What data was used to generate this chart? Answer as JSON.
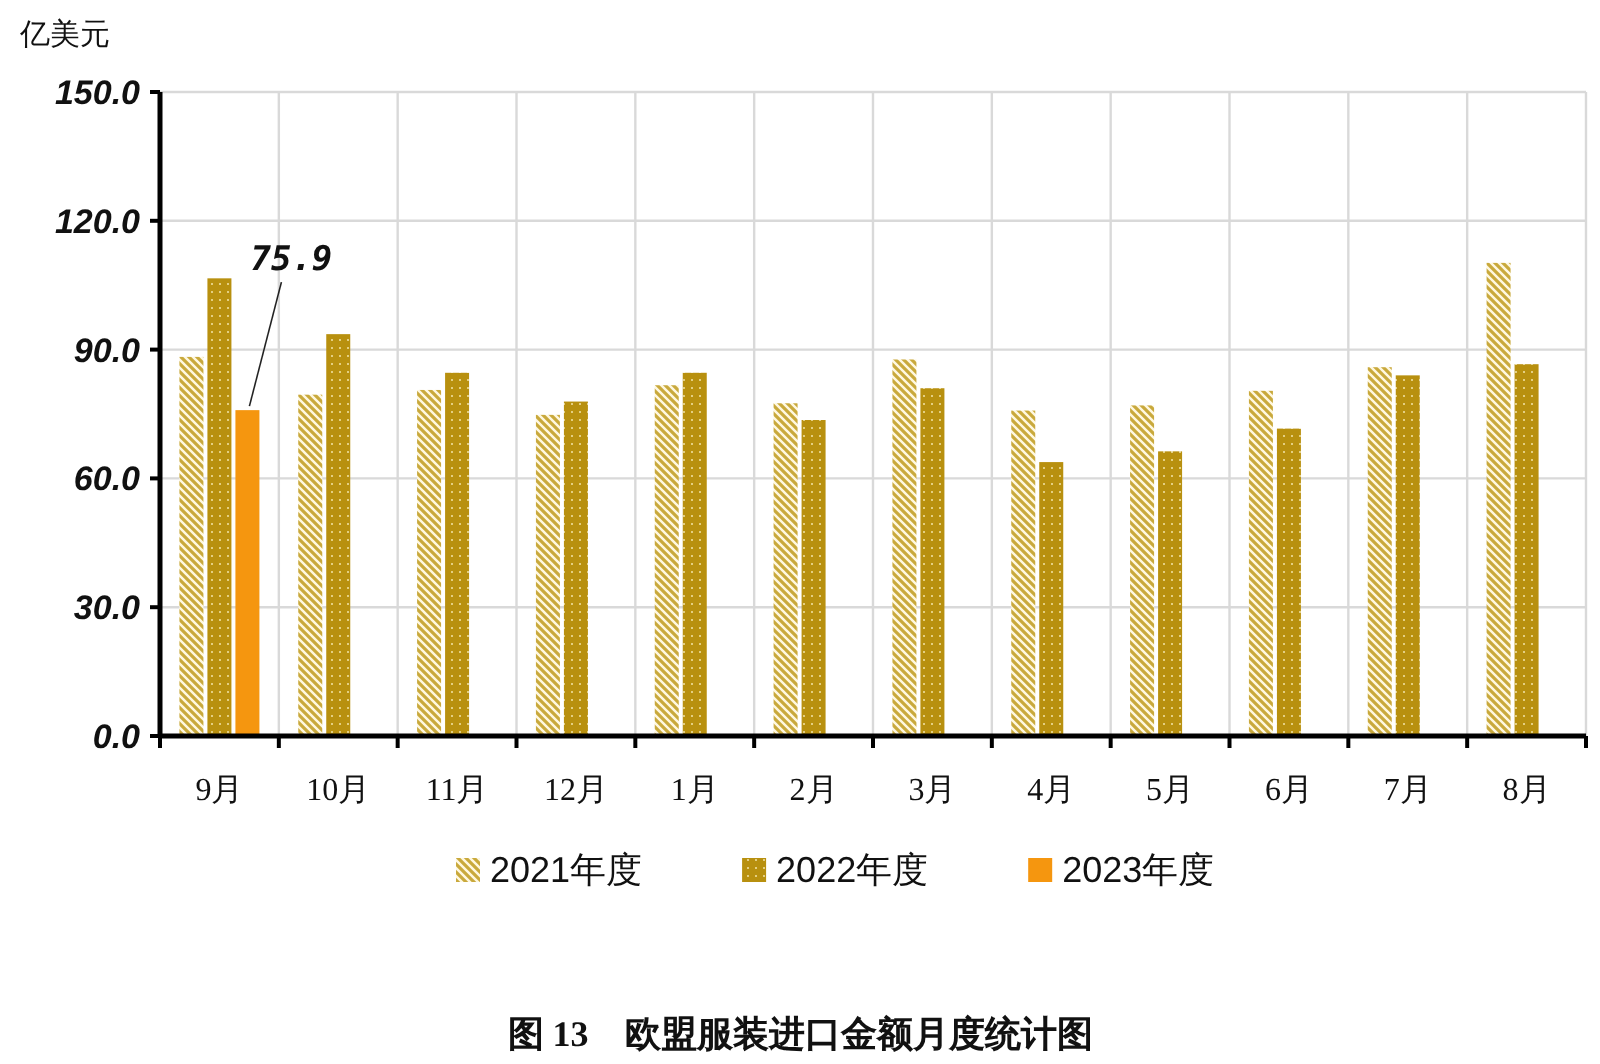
{
  "chart_data": {
    "type": "bar",
    "title": "图 13　欧盟服装进口金额月度统计图",
    "ylabel": "亿美元",
    "categories": [
      "9月",
      "10月",
      "11月",
      "12月",
      "1月",
      "2月",
      "3月",
      "4月",
      "5月",
      "6月",
      "7月",
      "8月"
    ],
    "series": [
      {
        "name": "2021年度",
        "color": "#c9a93c",
        "values": [
          88.3,
          79.5,
          80.6,
          74.8,
          81.7,
          77.5,
          87.7,
          75.8,
          77.0,
          80.4,
          85.9,
          110.2
        ]
      },
      {
        "name": "2022年度",
        "color": "#b8900f",
        "values": [
          106.6,
          93.6,
          84.6,
          77.9,
          84.6,
          73.6,
          81.0,
          63.8,
          66.3,
          71.6,
          84.0,
          86.6
        ]
      },
      {
        "name": "2023年度",
        "color": "#f5960f",
        "values": [
          75.9,
          null,
          null,
          null,
          null,
          null,
          null,
          null,
          null,
          null,
          null,
          null
        ],
        "value_labels": [
          "75.9",
          null,
          null,
          null,
          null,
          null,
          null,
          null,
          null,
          null,
          null,
          null
        ]
      }
    ],
    "ylim": [
      0,
      150
    ],
    "yticks": [
      {
        "value": 0,
        "label": "0.0"
      },
      {
        "value": 30,
        "label": "30.0"
      },
      {
        "value": 60,
        "label": "60.0"
      },
      {
        "value": 90,
        "label": "90.0"
      },
      {
        "value": 120,
        "label": "120.0"
      },
      {
        "value": 150,
        "label": "150.0"
      }
    ],
    "grid": true,
    "legend": "bottom"
  }
}
